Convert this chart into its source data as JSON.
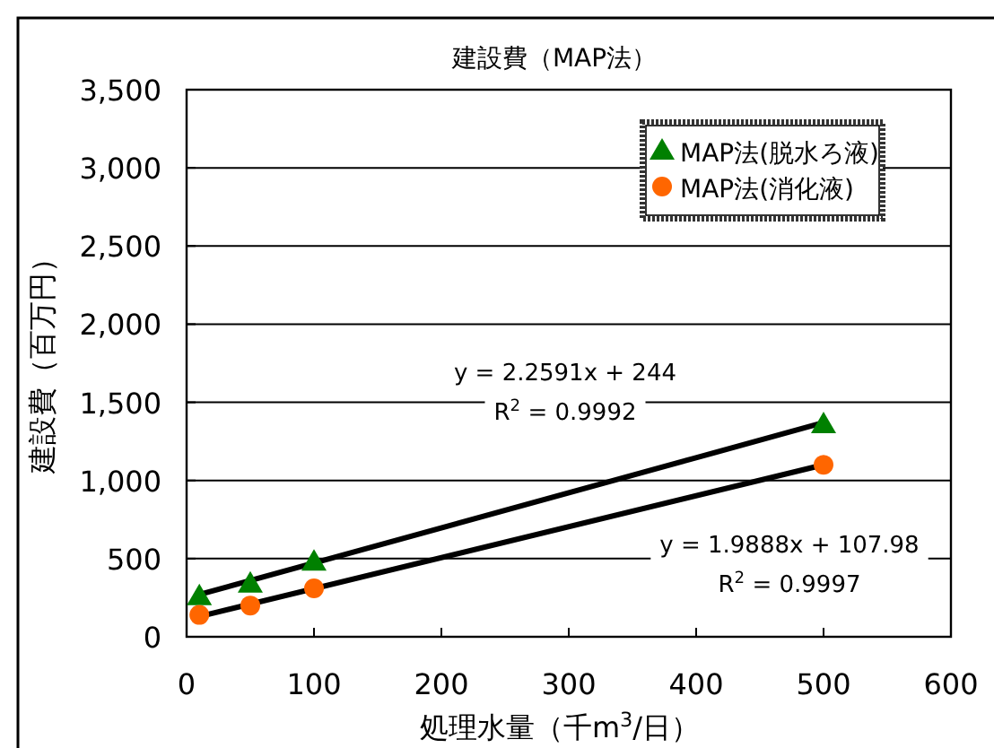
{
  "chart_data": {
    "type": "scatter",
    "title": "建設費（MAP法）",
    "xlabel": "処理水量（千m$^{3}$/日）",
    "ylabel": "建設費（百万円）",
    "xlim": [
      0,
      600
    ],
    "xticks": [
      0,
      100,
      200,
      300,
      400,
      500,
      600
    ],
    "ylim": [
      0,
      3500
    ],
    "yticks": [
      {
        "value": 0,
        "label": "0"
      },
      {
        "value": 500,
        "label": "500"
      },
      {
        "value": 1000,
        "label": "1,000"
      },
      {
        "value": 1500,
        "label": "1,500"
      },
      {
        "value": 2000,
        "label": "2,000"
      },
      {
        "value": 2500,
        "label": "2,500"
      },
      {
        "value": 3000,
        "label": "3,000"
      },
      {
        "value": 3500,
        "label": "3,500"
      }
    ],
    "grid": "y",
    "legend": "top right",
    "series": [
      {
        "name": "MAP法(脱水ろ液)",
        "color": "#008000",
        "marker": "triangle",
        "x": [
          10,
          50,
          100,
          500
        ],
        "values": [
          260,
          340,
          480,
          1360
        ]
      },
      {
        "name": "MAP法(消化液)",
        "color": "#ff6600",
        "marker": "circle",
        "x": [
          10,
          50,
          100,
          500
        ],
        "values": [
          140,
          200,
          310,
          1100
        ]
      },
      {
        "type": "line",
        "color": "#000000",
        "marker": "none",
        "x": [
          10,
          500
        ],
        "values": [
          270,
          1370
        ]
      },
      {
        "type": "line",
        "color": "#000000",
        "marker": "none",
        "x": [
          10,
          500
        ],
        "values": [
          130,
          1100
        ]
      }
    ],
    "annotations": [
      "y = 2.2591x + 244",
      "R$^{2}$ = 0.9992",
      "y = 1.9888x + 107.98",
      "R$^{2}$ = 0.9997"
    ]
  }
}
